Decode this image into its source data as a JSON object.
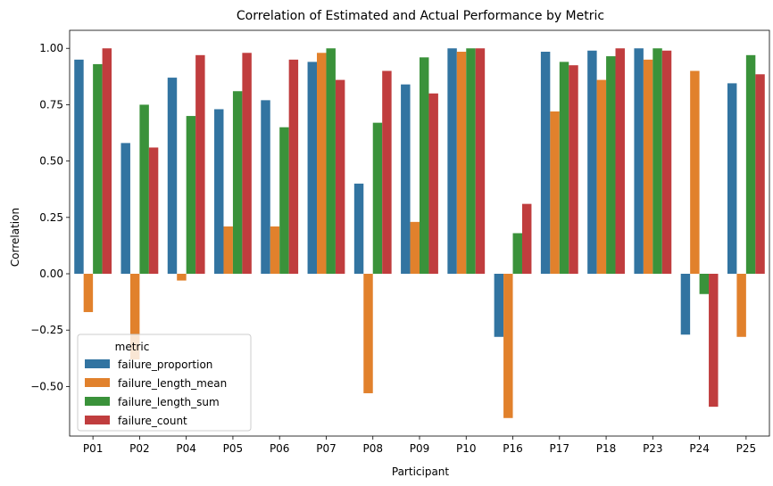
{
  "chart_data": {
    "type": "bar",
    "title": "Correlation of Estimated and Actual Performance by Metric",
    "xlabel": "Participant",
    "ylabel": "Correlation",
    "ylim": [
      -0.72,
      1.08
    ],
    "yticks": [
      -0.5,
      -0.25,
      0.0,
      0.25,
      0.5,
      0.75,
      1.0
    ],
    "ytick_labels": [
      "−0.50",
      "−0.25",
      "0.00",
      "0.25",
      "0.50",
      "0.75",
      "1.00"
    ],
    "grid": false,
    "categories": [
      "P01",
      "P02",
      "P04",
      "P05",
      "P06",
      "P07",
      "P08",
      "P09",
      "P10",
      "P16",
      "P17",
      "P18",
      "P23",
      "P24",
      "P25"
    ],
    "legend": {
      "title": "metric",
      "placement": "lower-left"
    },
    "series": [
      {
        "name": "failure_proportion",
        "color": "#3274a1",
        "values": [
          0.95,
          0.58,
          0.87,
          0.73,
          0.77,
          0.94,
          0.4,
          0.84,
          1.0,
          -0.28,
          0.985,
          0.99,
          1.0,
          -0.27,
          0.845
        ]
      },
      {
        "name": "failure_length_mean",
        "color": "#e1812c",
        "values": [
          -0.17,
          -0.38,
          -0.03,
          0.21,
          0.21,
          0.98,
          -0.53,
          0.23,
          0.985,
          -0.64,
          0.72,
          0.86,
          0.95,
          0.9,
          -0.28
        ]
      },
      {
        "name": "failure_length_sum",
        "color": "#3a923a",
        "values": [
          0.93,
          0.75,
          0.7,
          0.81,
          0.65,
          1.0,
          0.67,
          0.96,
          1.0,
          0.18,
          0.94,
          0.965,
          1.0,
          -0.09,
          0.97
        ]
      },
      {
        "name": "failure_count",
        "color": "#c03d3e",
        "values": [
          1.0,
          0.56,
          0.97,
          0.98,
          0.95,
          0.86,
          0.9,
          0.8,
          1.0,
          0.31,
          0.925,
          1.0,
          0.99,
          -0.59,
          0.885
        ]
      }
    ]
  }
}
